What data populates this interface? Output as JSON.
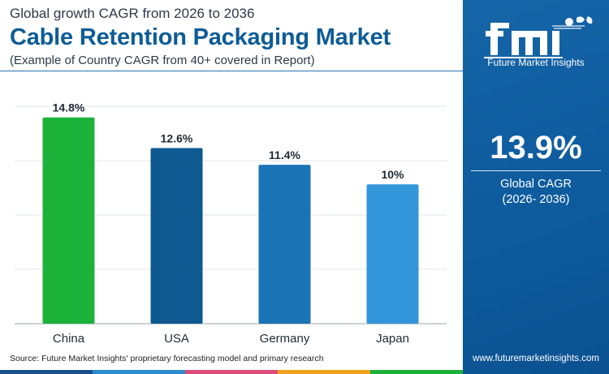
{
  "header": {
    "pretitle": "Global growth CAGR from 2026 to 2036",
    "title": "Cable Retention Packaging Market",
    "subtitle": "(Example of Country CAGR from 40+ covered in Report)"
  },
  "chart_data": {
    "type": "bar",
    "categories": [
      "China",
      "USA",
      "Germany",
      "Japan"
    ],
    "values": [
      14.8,
      12.6,
      11.4,
      10
    ],
    "data_labels": [
      "14.8%",
      "12.6%",
      "11.4%",
      "10%"
    ],
    "unit": "%",
    "bar_colors": [
      "#1cb23a",
      "#0d5990",
      "#1b74b6",
      "#3396da"
    ],
    "ylim": [
      0,
      15.6
    ],
    "grid": true,
    "xlabel": "",
    "ylabel": ""
  },
  "sidebar": {
    "logo_text": "Future Market Insights",
    "highlight_value": "13.9%",
    "highlight_label": "Global CAGR",
    "highlight_period": "(2026- 2036)",
    "website": "www.futuremarketinsights.com"
  },
  "footer": {
    "source": "Source: Future Market Insights' proprietary forecasting model and primary research",
    "strip_colors": [
      "#1b4f8a",
      "#2a8bd0",
      "#e04b7c",
      "#f0a21e",
      "#1cb23a"
    ]
  },
  "colors": {
    "title": "#0d5c96",
    "panel": "#0f62a6"
  }
}
